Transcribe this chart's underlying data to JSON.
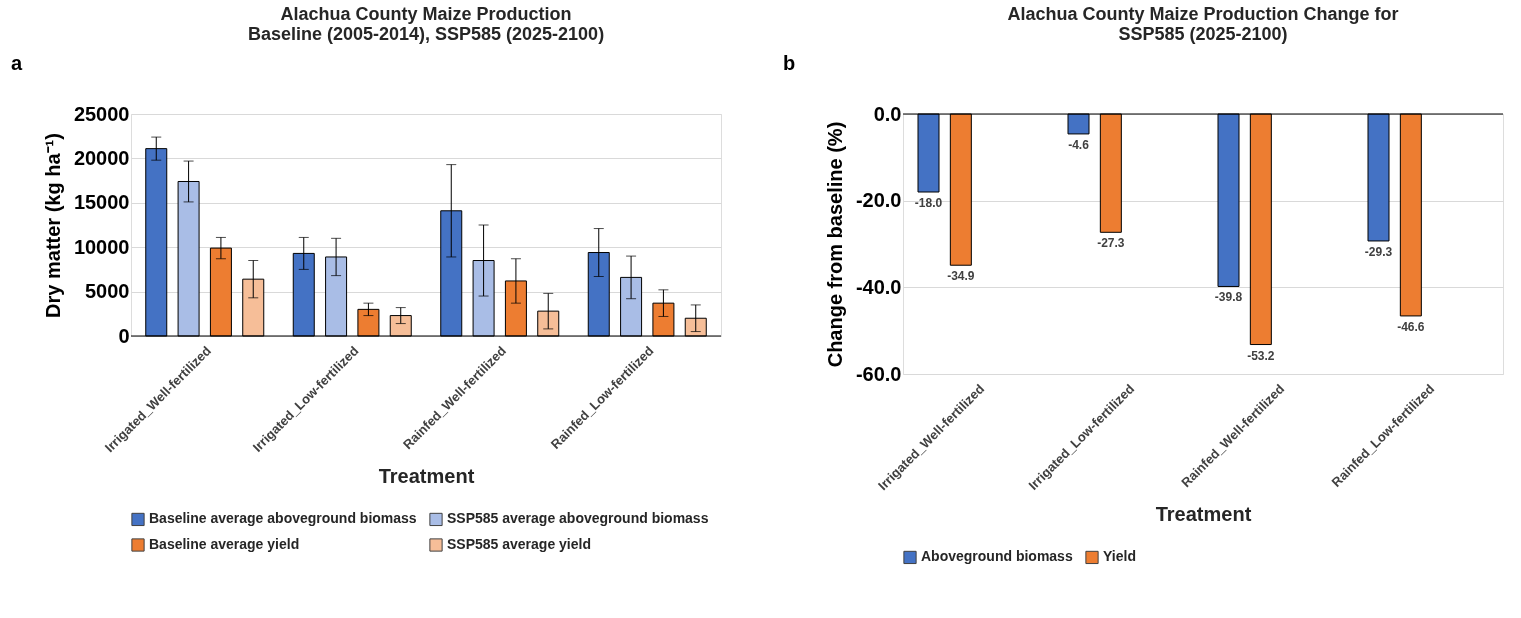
{
  "chart_data": [
    {
      "type": "bar",
      "title": "Alachua County Maize Production\nBaseline (2005-2014), SSP585 (2025-2100)",
      "xlabel": "Treatment",
      "ylabel": "Dry matter (kg ha⁻¹)",
      "annotations": [
        "a"
      ],
      "categories": [
        "Irrigated_Well-fertilized",
        "Irrigated_Low-fertilized",
        "Rainfed_Well-fertilized",
        "Rainfed_Low-fertilized"
      ],
      "series": [
        {
          "name": "Baseline average aboveground biomass",
          "color": "#4472c4",
          "values": [
            21100,
            9300,
            14100,
            9400
          ],
          "errors": [
            1300,
            1800,
            5200,
            2700
          ]
        },
        {
          "name": "SSP585 average aboveground biomass",
          "color": "#a9bde6",
          "values": [
            17400,
            8900,
            8500,
            6600
          ],
          "errors": [
            2300,
            2100,
            4000,
            2400
          ]
        },
        {
          "name": "Baseline average yield",
          "color": "#ed7d31",
          "values": [
            9900,
            3000,
            6200,
            3700
          ],
          "errors": [
            1200,
            700,
            2500,
            1500
          ]
        },
        {
          "name": "SSP585 average yield",
          "color": "#f6be98",
          "values": [
            6400,
            2300,
            2800,
            2000
          ],
          "errors": [
            2100,
            900,
            2000,
            1500
          ]
        }
      ],
      "ylim": [
        0,
        25000
      ],
      "yticks": [
        0,
        5000,
        10000,
        15000,
        20000,
        25000
      ],
      "grid": "y",
      "legend": "bottom"
    },
    {
      "type": "bar",
      "title": "Alachua County Maize Production Change for\nSSP585 (2025-2100)",
      "xlabel": "Treatment",
      "ylabel": "Change from baseline (%)",
      "annotations": [
        "b"
      ],
      "categories": [
        "Irrigated_Well-fertilized",
        "Irrigated_Low-fertilized",
        "Rainfed_Well-fertilized",
        "Rainfed_Low-fertilized"
      ],
      "series": [
        {
          "name": "Aboveground biomass",
          "color": "#4472c4",
          "values": [
            -18.0,
            -4.6,
            -39.8,
            -29.3
          ],
          "value_labels": [
            "-18.0",
            "-4.6",
            "-39.8",
            "-29.3"
          ]
        },
        {
          "name": "Yield",
          "color": "#ed7d31",
          "values": [
            -34.9,
            -27.3,
            -53.2,
            -46.6
          ],
          "value_labels": [
            "-34.9",
            "-27.3",
            "-53.2",
            "-46.6"
          ]
        }
      ],
      "ylim": [
        -60,
        0
      ],
      "yticks": [
        {
          "value": -60,
          "label": "-60.0"
        },
        {
          "value": -40,
          "label": "-40.0"
        },
        {
          "value": -20,
          "label": "-20.0"
        },
        {
          "value": 0,
          "label": "0.0"
        }
      ],
      "grid": "y",
      "legend": "bottom"
    }
  ]
}
